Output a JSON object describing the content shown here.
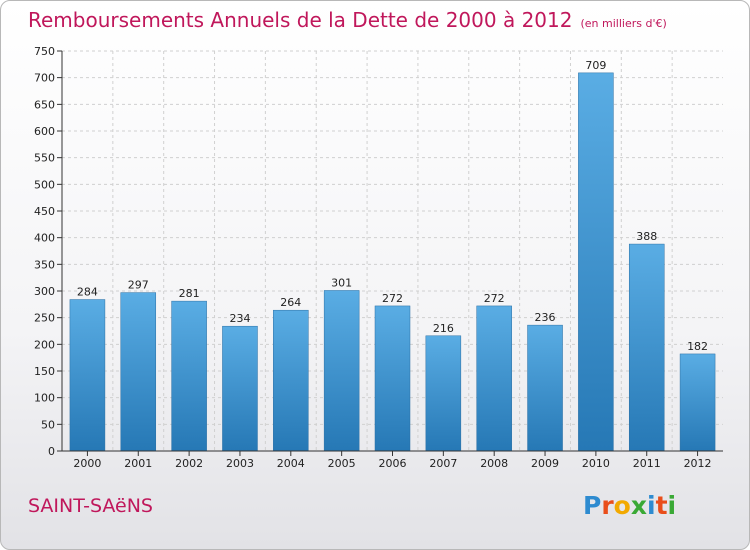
{
  "chart_data": {
    "type": "bar",
    "title": "Remboursements Annuels de la Dette de 2000 à 2012",
    "subtitle": "(en milliers d'€)",
    "categories": [
      "2000",
      "2001",
      "2002",
      "2003",
      "2004",
      "2005",
      "2006",
      "2007",
      "2008",
      "2009",
      "2010",
      "2011",
      "2012"
    ],
    "values": [
      284,
      297,
      281,
      234,
      264,
      301,
      272,
      216,
      272,
      236,
      709,
      388,
      182
    ],
    "ylim": [
      0,
      750
    ],
    "yticks": [
      0,
      50,
      100,
      150,
      200,
      250,
      300,
      350,
      400,
      450,
      500,
      550,
      600,
      650,
      700,
      750
    ],
    "xlabel": "",
    "ylabel": "",
    "grid": true
  },
  "commune": "SAINT-SAëNS",
  "logo": {
    "letters": [
      "P",
      "r",
      "o",
      "x",
      "i",
      "t",
      "i"
    ],
    "colors": [
      "#2e8bd0",
      "#e94e1b",
      "#f2a900",
      "#3aa935",
      "#2e8bd0",
      "#e94e1b",
      "#3aa935"
    ]
  },
  "colors": {
    "accent": "#c0175b",
    "bar_top": "#5aade4",
    "bar_bottom": "#2678b5"
  }
}
